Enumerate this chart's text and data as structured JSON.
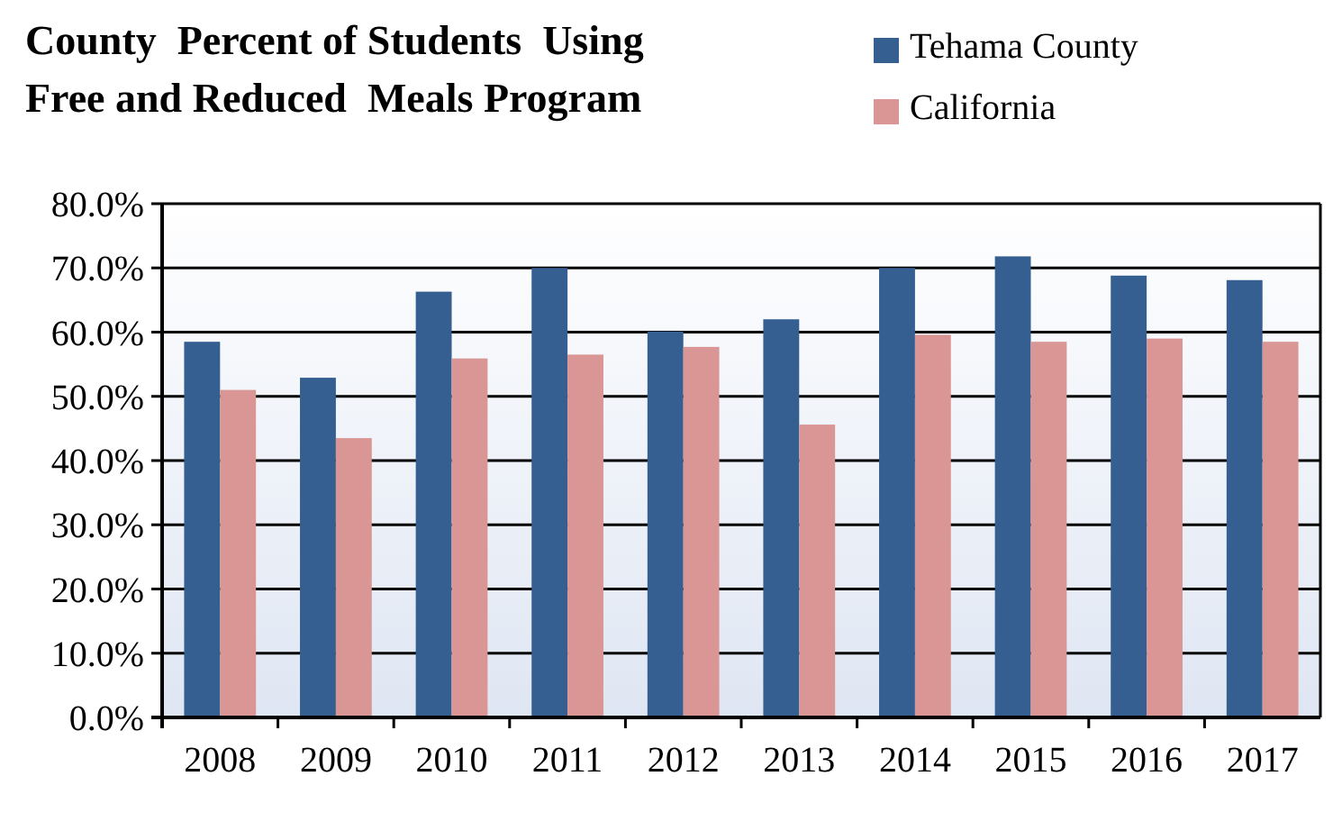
{
  "chart_data": {
    "type": "bar",
    "title": "County  Percent of Students  Using\nFree and Reduced  Meals Program",
    "categories": [
      "2008",
      "2009",
      "2010",
      "2011",
      "2012",
      "2013",
      "2014",
      "2015",
      "2016",
      "2017"
    ],
    "series": [
      {
        "name": "Tehama County",
        "color": "#355f91",
        "values": [
          58.5,
          52.9,
          66.3,
          70.0,
          60.1,
          62.0,
          70.0,
          71.8,
          68.8,
          68.1
        ]
      },
      {
        "name": "California",
        "color": "#d99694",
        "values": [
          51.0,
          43.5,
          55.9,
          56.5,
          57.7,
          45.6,
          59.6,
          58.5,
          59.0,
          58.5
        ]
      }
    ],
    "ylim": [
      0,
      80
    ],
    "yticks": [
      {
        "value": 0,
        "label": "0.0%"
      },
      {
        "value": 10,
        "label": "10.0%"
      },
      {
        "value": 20,
        "label": "20.0%"
      },
      {
        "value": 30,
        "label": "30.0%"
      },
      {
        "value": 40,
        "label": "40.0%"
      },
      {
        "value": 50,
        "label": "50.0%"
      },
      {
        "value": 60,
        "label": "60.0%"
      },
      {
        "value": 70,
        "label": "70.0%"
      },
      {
        "value": 80,
        "label": "80.0%"
      }
    ],
    "grid": "y",
    "legend": "top right"
  }
}
